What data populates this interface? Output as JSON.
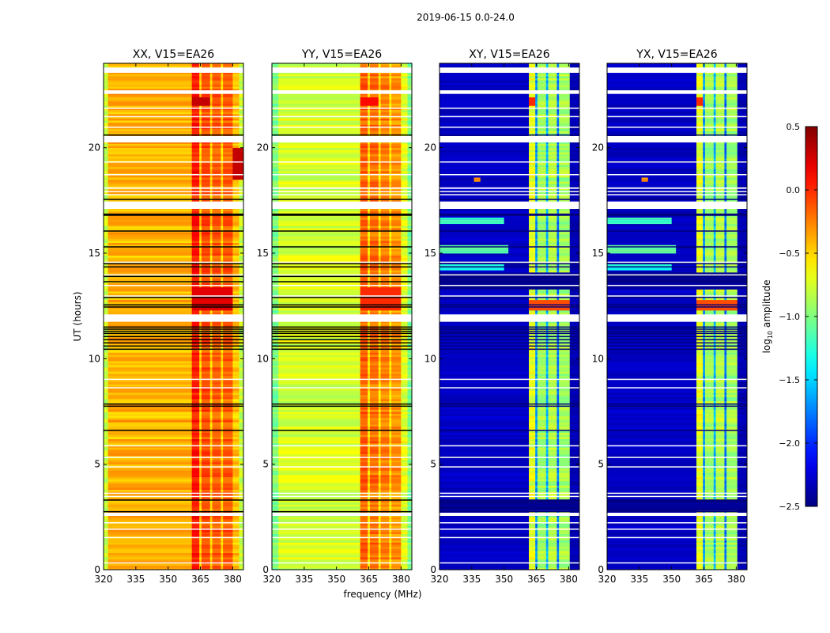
{
  "chart_data": {
    "type": "heatmap",
    "title": "2019-06-15 0.0-24.0",
    "xlabel": "frequency (MHz)",
    "ylabel": "UT (hours)",
    "xlim": [
      320,
      385
    ],
    "ylim": [
      0,
      24
    ],
    "xticks": [
      320,
      335,
      350,
      365,
      380
    ],
    "yticks": [
      0,
      5,
      10,
      15,
      20
    ],
    "colormap": "jet",
    "colorbar": {
      "label": "log10 amplitude",
      "label_main": "log",
      "label_sub": "10",
      "label_rest": " amplitude",
      "range": [
        -2.5,
        0.5
      ],
      "ticks": [
        0.5,
        0.0,
        -0.5,
        -1.0,
        -1.5,
        -2.0,
        -2.5
      ],
      "tick_labels": [
        "0.5",
        "0.0",
        "−0.5",
        "−1.0",
        "−1.5",
        "−2.0",
        "−2.5"
      ]
    },
    "flagged_hours_white": [
      [
        23.55,
        23.8
      ],
      [
        22.55,
        22.72
      ],
      [
        21.85,
        21.9
      ],
      [
        21.45,
        21.5
      ],
      [
        20.95,
        21.0
      ],
      [
        20.25,
        20.55
      ],
      [
        19.3,
        19.35
      ],
      [
        18.7,
        18.75
      ],
      [
        18.05,
        18.12
      ],
      [
        17.9,
        17.95
      ],
      [
        17.75,
        17.8
      ],
      [
        17.1,
        17.45
      ],
      [
        14.55,
        14.6
      ],
      [
        13.95,
        14.0
      ],
      [
        13.45,
        13.5
      ],
      [
        12.95,
        13.0
      ],
      [
        11.75,
        12.1
      ],
      [
        9.0,
        9.05
      ],
      [
        8.6,
        8.65
      ],
      [
        5.85,
        5.9
      ],
      [
        5.3,
        5.35
      ],
      [
        4.85,
        4.9
      ],
      [
        3.6,
        3.65
      ],
      [
        3.45,
        3.5
      ],
      [
        2.55,
        2.7
      ],
      [
        2.2,
        2.25
      ],
      [
        1.9,
        1.95
      ],
      [
        1.5,
        1.55
      ],
      [
        0.3,
        0.35
      ]
    ],
    "flagged_hours_black": [
      20.6,
      17.55,
      16.85,
      16.8,
      16.05,
      15.3,
      14.5,
      14.35,
      13.9,
      13.65,
      12.9,
      12.55,
      12.45,
      11.5,
      11.4,
      11.3,
      11.2,
      11.05,
      10.9,
      10.75,
      10.6,
      10.45,
      7.85,
      7.75,
      6.6,
      3.3,
      2.75
    ],
    "panels": [
      {
        "title": "XX, V15=EA26",
        "segments": [
          [
            320,
            322,
            -0.8
          ],
          [
            322,
            361,
            -0.4
          ],
          [
            361,
            364.5,
            0.05
          ],
          [
            364.5,
            365.5,
            -0.5
          ],
          [
            365.5,
            369.5,
            -0.1
          ],
          [
            369.5,
            370.5,
            -0.5
          ],
          [
            370.5,
            374.5,
            -0.15
          ],
          [
            374.5,
            375.5,
            -0.5
          ],
          [
            375.5,
            380,
            -0.15
          ],
          [
            380,
            383,
            -0.45
          ],
          [
            383,
            385,
            -0.8
          ]
        ],
        "events": [
          [
            22.0,
            22.4,
            361,
            368,
            0.3
          ],
          [
            12.3,
            13.3,
            361,
            380,
            0.2
          ],
          [
            18.5,
            20.0,
            382,
            385,
            0.3
          ]
        ]
      },
      {
        "title": "YY, V15=EA26",
        "segments": [
          [
            320,
            323,
            -1.0
          ],
          [
            323,
            361,
            -0.75
          ],
          [
            361,
            364.5,
            -0.15
          ],
          [
            364.5,
            365.5,
            -0.55
          ],
          [
            365.5,
            369.5,
            -0.2
          ],
          [
            369.5,
            370.5,
            -0.55
          ],
          [
            370.5,
            374.5,
            -0.25
          ],
          [
            374.5,
            375.5,
            -0.55
          ],
          [
            375.5,
            380,
            -0.3
          ],
          [
            380,
            383,
            -0.7
          ],
          [
            383,
            385,
            -1.0
          ]
        ],
        "events": [
          [
            22.0,
            22.4,
            361,
            368,
            0.1
          ],
          [
            12.3,
            13.3,
            361,
            380,
            0.0
          ]
        ]
      },
      {
        "title": "XY, V15=EA26",
        "segments": [
          [
            320,
            361.5,
            -2.3
          ],
          [
            361.5,
            364.5,
            -0.7
          ],
          [
            364.5,
            365.5,
            -1.7
          ],
          [
            365.5,
            369.5,
            -0.9
          ],
          [
            369.5,
            370.5,
            -1.6
          ],
          [
            370.5,
            374.5,
            -0.85
          ],
          [
            374.5,
            375.5,
            -1.8
          ],
          [
            375.5,
            380.5,
            -0.9
          ],
          [
            380.5,
            385,
            -2.35
          ]
        ],
        "events": [
          [
            22.0,
            22.4,
            361.5,
            364.5,
            0.0
          ],
          [
            16.4,
            16.6,
            320,
            350,
            -1.2
          ],
          [
            15.0,
            15.3,
            320,
            352,
            -1.1
          ],
          [
            14.2,
            14.4,
            320,
            350,
            -1.3
          ],
          [
            12.3,
            12.7,
            361.5,
            380,
            -0.1
          ],
          [
            13.3,
            14.0,
            320,
            385,
            -2.45
          ],
          [
            2.75,
            3.3,
            320,
            385,
            -2.45
          ],
          [
            18.4,
            18.5,
            336,
            339,
            -0.3
          ]
        ]
      },
      {
        "title": "YX, V15=EA26",
        "segments": [
          [
            320,
            361.5,
            -2.3
          ],
          [
            361.5,
            364.5,
            -0.7
          ],
          [
            364.5,
            365.5,
            -1.7
          ],
          [
            365.5,
            369.5,
            -0.9
          ],
          [
            369.5,
            370.5,
            -1.6
          ],
          [
            370.5,
            374.5,
            -0.85
          ],
          [
            374.5,
            375.5,
            -1.8
          ],
          [
            375.5,
            380.5,
            -0.9
          ],
          [
            380.5,
            385,
            -2.35
          ]
        ],
        "events": [
          [
            22.0,
            22.4,
            361.5,
            364.5,
            0.0
          ],
          [
            16.4,
            16.6,
            320,
            350,
            -1.2
          ],
          [
            15.0,
            15.3,
            320,
            352,
            -1.1
          ],
          [
            14.2,
            14.4,
            320,
            350,
            -1.3
          ],
          [
            12.3,
            12.7,
            361.5,
            380,
            -0.1
          ],
          [
            13.3,
            14.0,
            320,
            385,
            -2.45
          ],
          [
            2.75,
            3.3,
            320,
            385,
            -2.45
          ],
          [
            18.4,
            18.5,
            336,
            339,
            -0.3
          ]
        ]
      }
    ]
  }
}
